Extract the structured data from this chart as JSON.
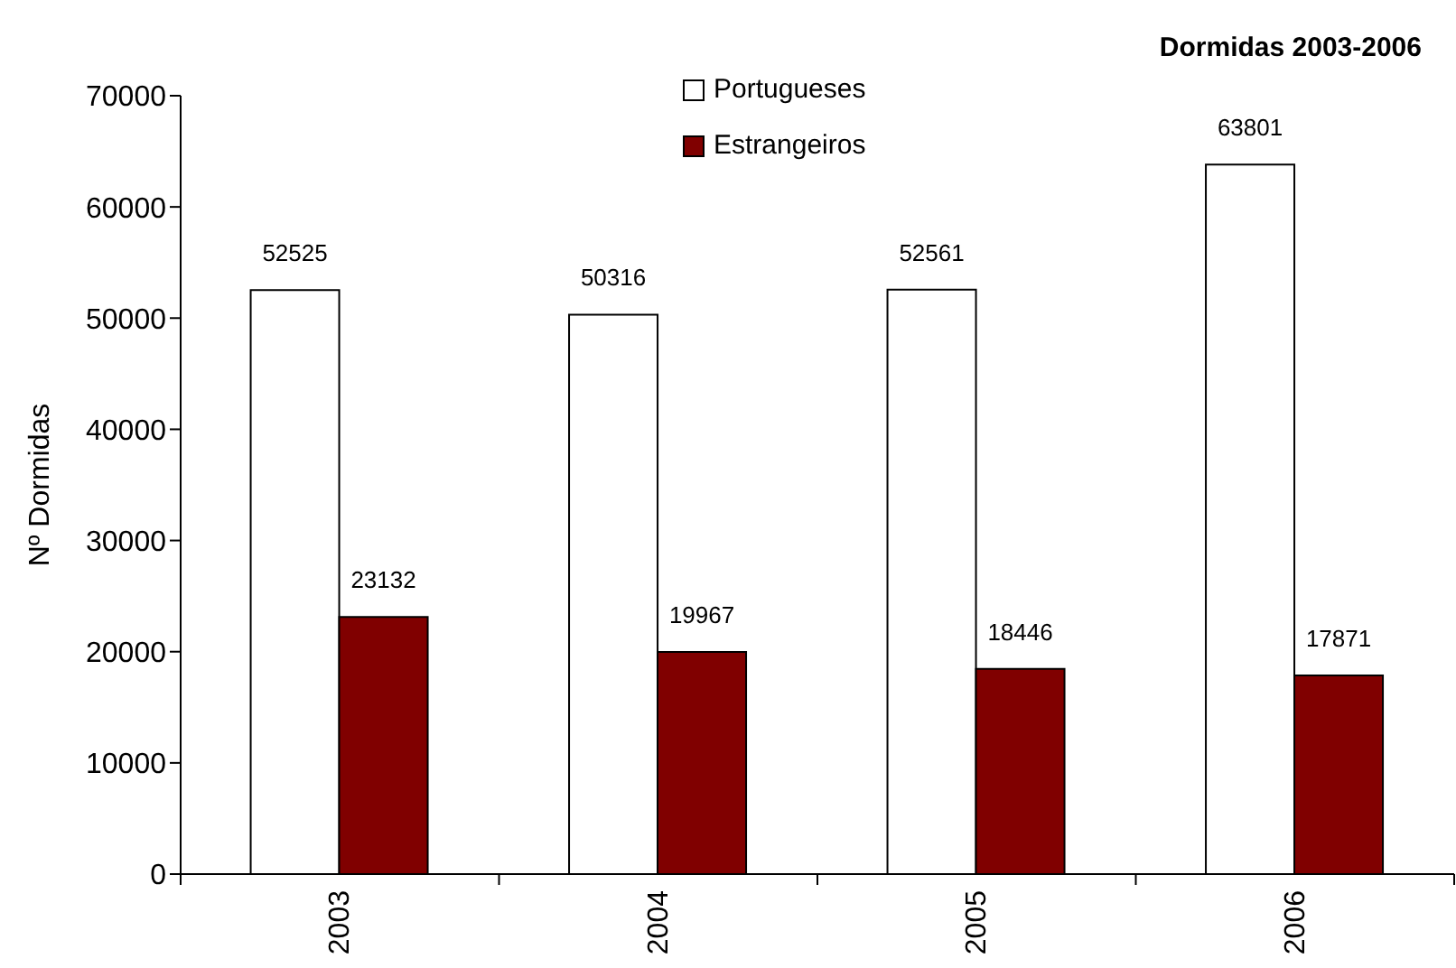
{
  "chart_data": {
    "type": "bar",
    "title": "Dormidas 2003-2006",
    "ylabel": "Nº Dormidas",
    "categories": [
      "2003",
      "2004",
      "2005",
      "2006"
    ],
    "series": [
      {
        "name": "Portugueses",
        "color": "#ffffff",
        "values": [
          52525,
          50316,
          52561,
          63801
        ]
      },
      {
        "name": "Estrangeiros",
        "color": "#800000",
        "values": [
          23132,
          19967,
          18446,
          17871
        ]
      }
    ],
    "ylim": [
      0,
      70000
    ],
    "yticks": [
      0,
      10000,
      20000,
      30000,
      40000,
      50000,
      60000,
      70000
    ],
    "legend": "top",
    "data_labels": true
  }
}
